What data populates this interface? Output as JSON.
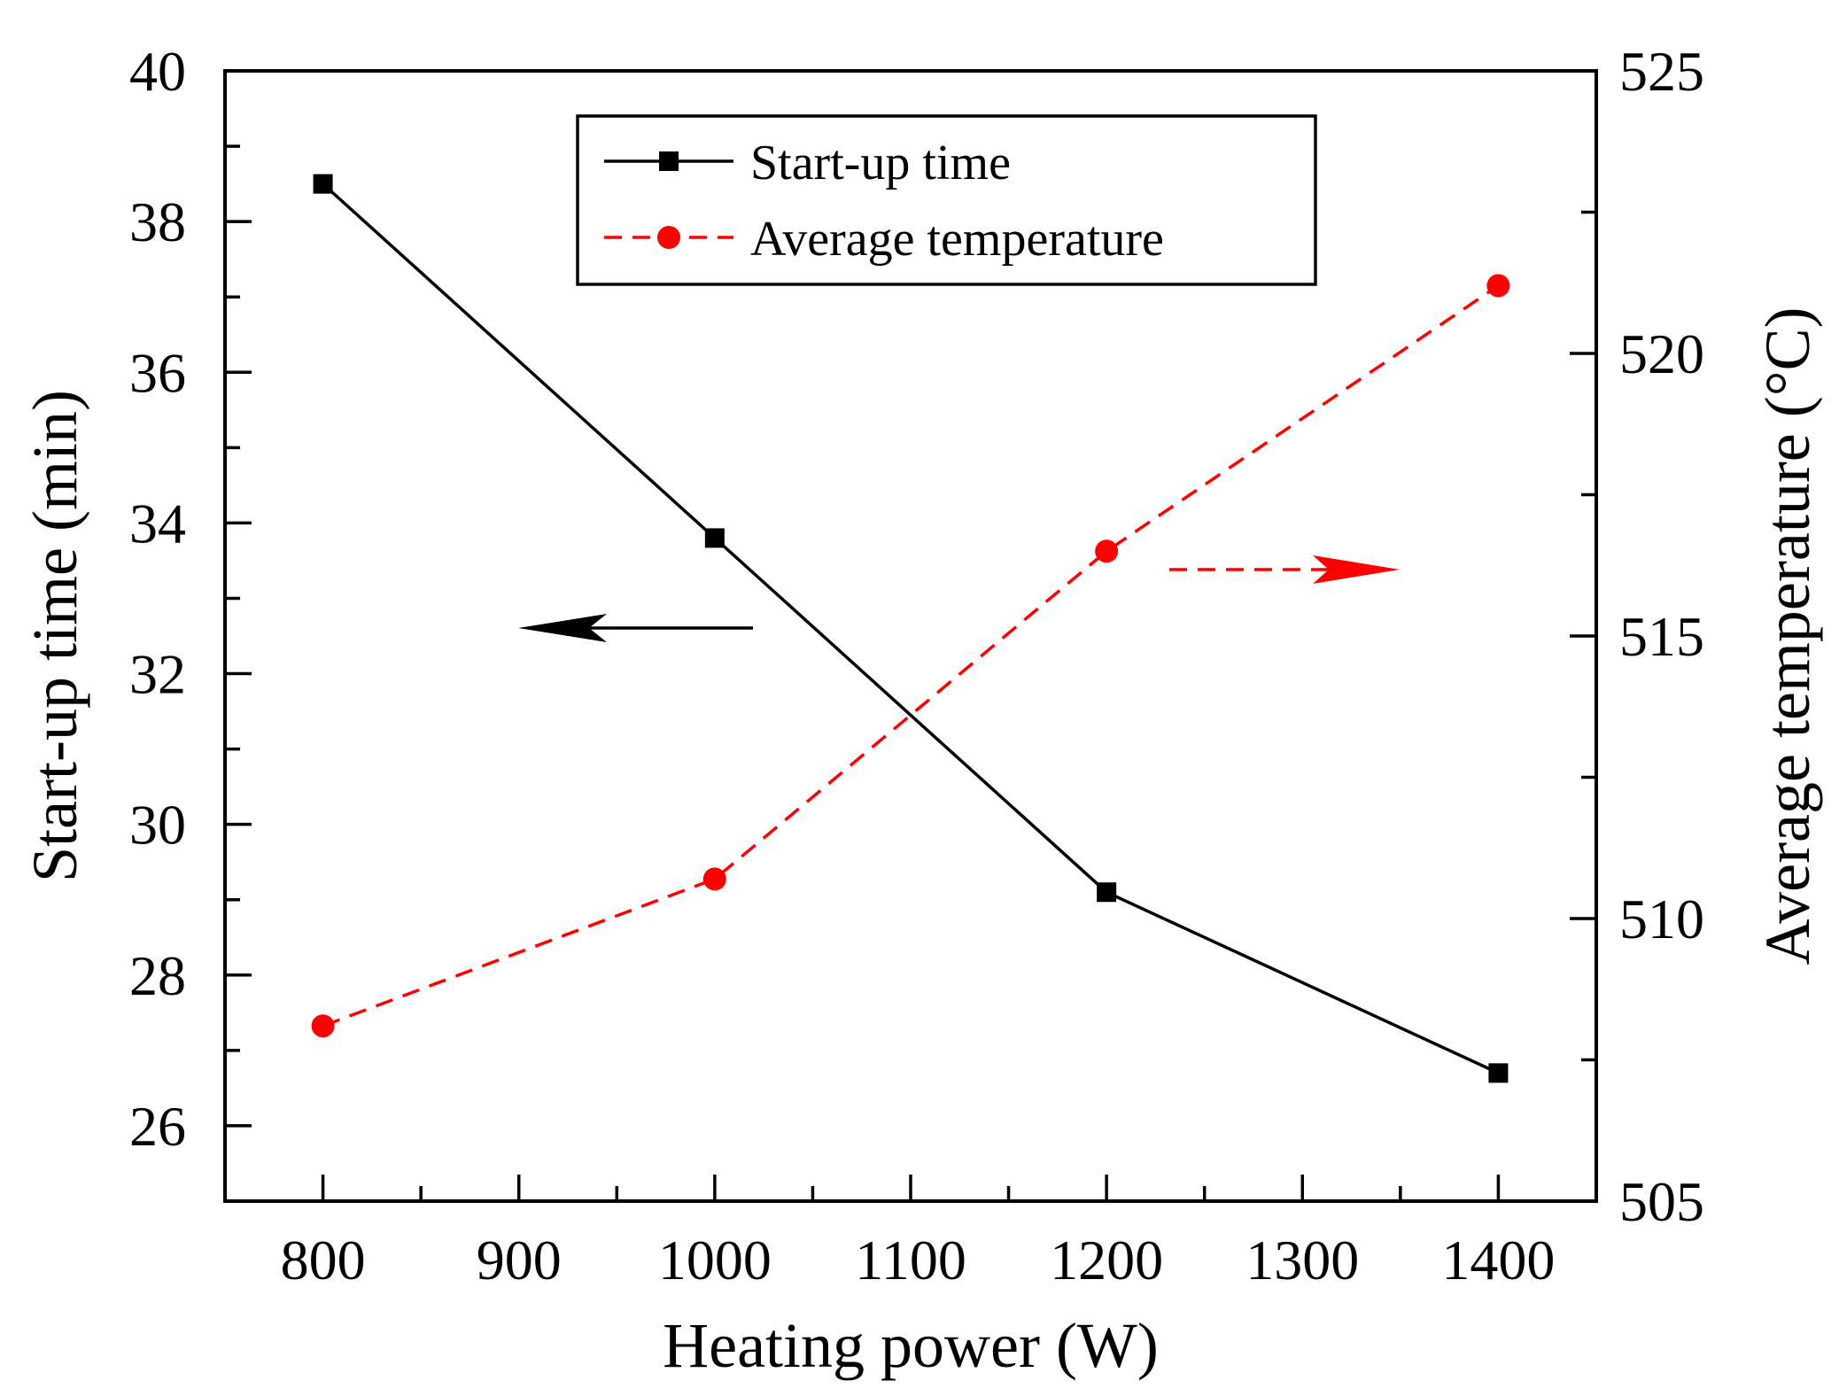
{
  "chart_data": {
    "type": "line",
    "x": [
      800,
      1000,
      1200,
      1400
    ],
    "xlabel": "Heating power (W)",
    "xlim": [
      750,
      1450
    ],
    "x_ticks": [
      800,
      900,
      1000,
      1100,
      1200,
      1300,
      1400
    ],
    "ylabel": "Start-up time (min)",
    "ylim": [
      25,
      40
    ],
    "y_ticks": [
      26,
      28,
      30,
      32,
      34,
      36,
      38,
      40
    ],
    "y2label": "Average temperature (°C)",
    "y2lim": [
      505,
      525
    ],
    "y2_ticks": [
      505,
      510,
      515,
      520,
      525
    ],
    "series": [
      {
        "name": "Start-up time",
        "axis": "left",
        "values": [
          38.5,
          33.8,
          29.1,
          26.7
        ],
        "color": "#000000",
        "line_style": "solid",
        "marker": "square"
      },
      {
        "name": "Average temperature",
        "axis": "right",
        "values": [
          508.1,
          510.7,
          516.5,
          521.2
        ],
        "color": "#ff0000",
        "line_style": "dashed",
        "marker": "circle"
      }
    ],
    "legend": {
      "position": "top-center"
    },
    "annotations": [
      {
        "type": "arrow",
        "direction": "left",
        "meaning": "Start-up time uses left axis",
        "color": "#000000"
      },
      {
        "type": "arrow",
        "direction": "right",
        "meaning": "Average temperature uses right axis",
        "color": "#ff0000"
      }
    ],
    "grid": false
  }
}
